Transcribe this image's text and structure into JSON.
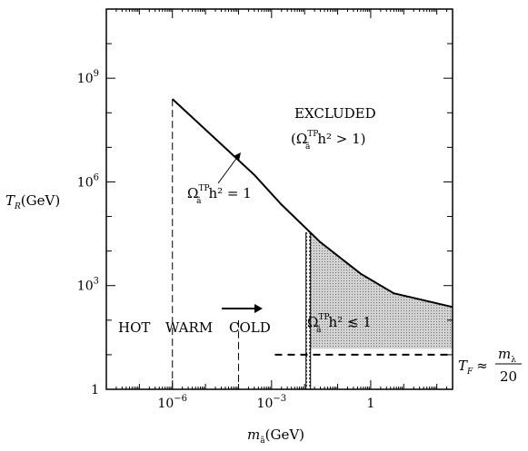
{
  "chart_data": {
    "type": "line",
    "xlabel": "m_ã(GeV)",
    "ylabel": "T_R(GeV)",
    "x_scale": "log10",
    "y_scale": "log10",
    "xlim": [
      1e-08,
      300
    ],
    "ylim": [
      1,
      100000000000.0
    ],
    "x_ticks": [
      {
        "value": 1e-06,
        "base": "10",
        "exp": "−6"
      },
      {
        "value": 0.001,
        "base": "10",
        "exp": "−3"
      },
      {
        "value": 1,
        "base": "1",
        "exp": ""
      }
    ],
    "y_ticks": [
      {
        "value": 1,
        "base": "1",
        "exp": ""
      },
      {
        "value": 1000.0,
        "base": "10",
        "exp": "3"
      },
      {
        "value": 1000000.0,
        "base": "10",
        "exp": "6"
      },
      {
        "value": 1000000000.0,
        "base": "10",
        "exp": "9"
      }
    ],
    "series": [
      {
        "name": "Ω_ã^TP h² = 1",
        "points": [
          [
            1e-06,
            250000000.0
          ],
          [
            0.0003,
            1600000.0
          ],
          [
            0.002,
            220000.0
          ],
          [
            0.03,
            18000.0
          ],
          [
            0.5,
            2200.0
          ],
          [
            5,
            600
          ],
          [
            300,
            240
          ]
        ]
      }
    ],
    "boundaries": [
      {
        "x": 1e-06,
        "ymin": 1,
        "ymax": 250000000.0,
        "style": "dashed"
      },
      {
        "x": 0.0001,
        "ymin": 1,
        "ymax": 100,
        "style": "dashed"
      },
      {
        "x": 0.0125,
        "ymin": 1,
        "ymax": 35000.0,
        "style": "hatched"
      }
    ],
    "tf_line": {
      "x_from": 0.0001,
      "x_to": 300,
      "y": 10,
      "style": "dashed"
    },
    "shaded_region": {
      "x_from": 0.0125,
      "x_to": 300,
      "y_from": 15,
      "label_main": "Ω",
      "label_sup": "TP",
      "label_sub": "ã",
      "label_rest": "h² ≲ 1"
    },
    "regions": {
      "hot": "HOT",
      "warm": "WARM",
      "cold": "COLD"
    },
    "annotations": {
      "excluded": "EXCLUDED",
      "excluded_cond": "(Ω",
      "excluded_cond_sup": "TP",
      "excluded_cond_sub": "ã",
      "excluded_cond_rest": "h² > 1)",
      "curve_label": "Ω",
      "curve_label_sup": "TP",
      "curve_label_sub": "ã",
      "curve_label_rest": "h² = 1",
      "tf_prefix": "T",
      "tf_sub": "F",
      "tf_approx": "≈",
      "tf_num": "m",
      "tf_num_sub": "λ",
      "tf_den": "20"
    },
    "axis_titles": {
      "y_main": "T",
      "y_sub": "R",
      "y_unit": "(GeV)",
      "x_main": "m",
      "x_sub": "ã",
      "x_unit": "(GeV)"
    },
    "colors": {
      "ink": "#000000",
      "shade": "#c8c8c8",
      "shade_dot": "#777777"
    }
  }
}
